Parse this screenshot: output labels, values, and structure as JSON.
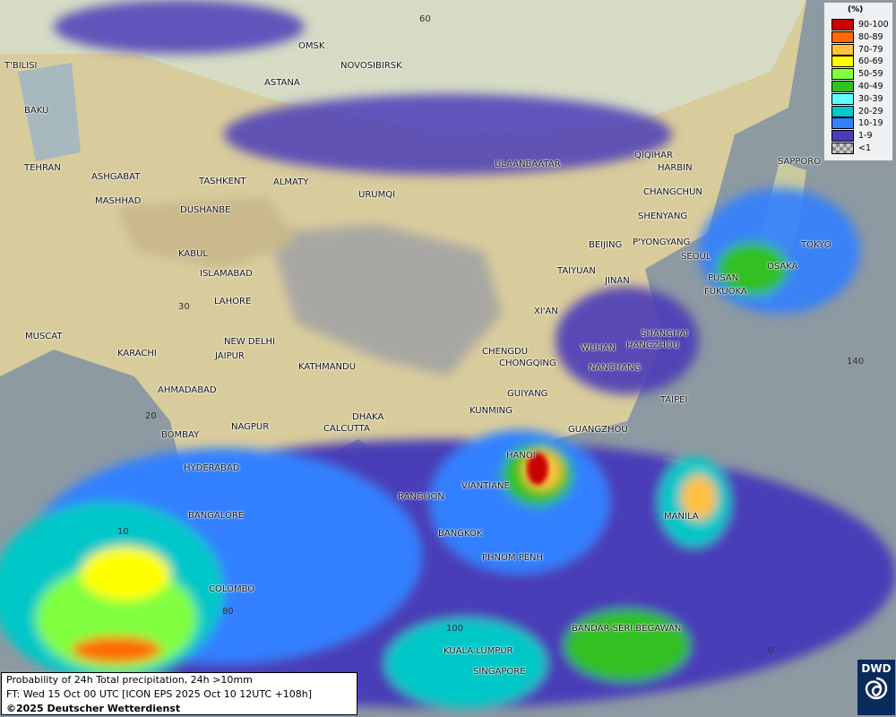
{
  "map": {
    "title": "Probability of 24h Total precipitation, 24h >10mm",
    "forecast_time": "FT: Wed 15 Oct 00 UTC [ICON EPS 2025 Oct 10 12UTC +108h]",
    "copyright": "©2025 Deutscher Wetterdienst",
    "logo": "DWD",
    "legend": {
      "unit": "(%)",
      "items": [
        {
          "label": "90-100",
          "color": "#c80000"
        },
        {
          "label": "80-89",
          "color": "#ff6a00"
        },
        {
          "label": "70-79",
          "color": "#ffc040"
        },
        {
          "label": "60-69",
          "color": "#ffff00"
        },
        {
          "label": "50-59",
          "color": "#80ff40"
        },
        {
          "label": "40-49",
          "color": "#30c020"
        },
        {
          "label": "30-39",
          "color": "#60ffff"
        },
        {
          "label": "20-29",
          "color": "#00c8c8"
        },
        {
          "label": "10-19",
          "color": "#3080ff"
        },
        {
          "label": "1-9",
          "color": "#4a3cb8"
        },
        {
          "label": "<1",
          "color": "checker"
        }
      ]
    },
    "grid_labels": [
      "60",
      "30",
      "20",
      "10",
      "80",
      "100",
      "140",
      "0"
    ],
    "cities": [
      "OMSK",
      "NOVOSIBIRSK",
      "ASTANA",
      "T'BILISI",
      "BAKU",
      "TEHRAN",
      "ASHGABAT",
      "MASHHAD",
      "TASHKENT",
      "ALMATY",
      "DUSHANBE",
      "URUMQI",
      "ULAANBAATAR",
      "QIQIHAR",
      "HARBIN",
      "CHANGCHUN",
      "SHENYANG",
      "BEIJING",
      "P'YONGYANG",
      "SEOUL",
      "TOKYO",
      "OSAKA",
      "SAPPORO",
      "PUSAN",
      "FUKUOKA",
      "TAIYUAN",
      "JINAN",
      "XI'AN",
      "KABUL",
      "ISLAMABAD",
      "LAHORE",
      "NEW DELHI",
      "JAIPUR",
      "MUSCAT",
      "KARACHI",
      "AHMADABAD",
      "KATHMANDU",
      "CHENGDU",
      "CHONGQING",
      "WUHAN",
      "SHANGHAI",
      "HANGZHOU",
      "NANCHANG",
      "GUIYANG",
      "KUNMING",
      "TAIPEI",
      "DHAKA",
      "CALCUTTA",
      "NAGPUR",
      "BOMBAY",
      "GUANGZHOU",
      "HANOI",
      "HYDERABAD",
      "VIANTIANE",
      "RANGOON",
      "MANILA",
      "BANGALORE",
      "BANGKOK",
      "PHNOM PENH",
      "COLOMBO",
      "BANDAR SERI BEGAWAN",
      "KUALA LUMPUR",
      "SINGAPORE"
    ]
  }
}
